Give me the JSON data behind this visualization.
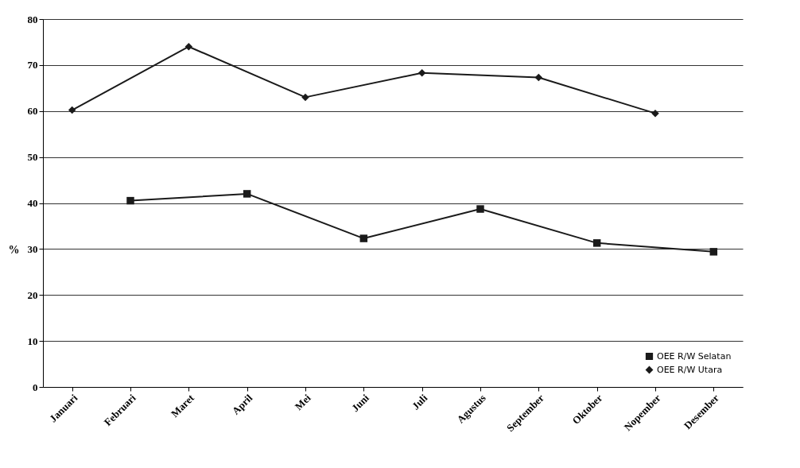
{
  "chart_data": {
    "type": "line",
    "ylabel": "%",
    "categories": [
      "Januari",
      "Februari",
      "Maret",
      "April",
      "Mei",
      "Juni",
      "Juli",
      "Agustus",
      "September",
      "Oktober",
      "Nopember",
      "Desember"
    ],
    "series": [
      {
        "name": "OEE R/W Selatan",
        "color": "#1a1a1a",
        "marker": "square",
        "values": [
          null,
          40.5,
          null,
          42,
          null,
          32.3,
          null,
          38.7,
          null,
          31.3,
          null,
          29.4
        ]
      },
      {
        "name": "OEE R/W Utara",
        "color": "#1a1a1a",
        "marker": "diamond",
        "values": [
          60.2,
          null,
          74,
          null,
          63,
          null,
          68.3,
          null,
          67.3,
          null,
          59.5,
          null
        ]
      }
    ],
    "ylim": [
      0,
      80
    ],
    "yticks": [
      0,
      10,
      20,
      30,
      40,
      50,
      60,
      70,
      80
    ],
    "grid": "y",
    "legend": "bottom right",
    "line_style": "solid"
  }
}
